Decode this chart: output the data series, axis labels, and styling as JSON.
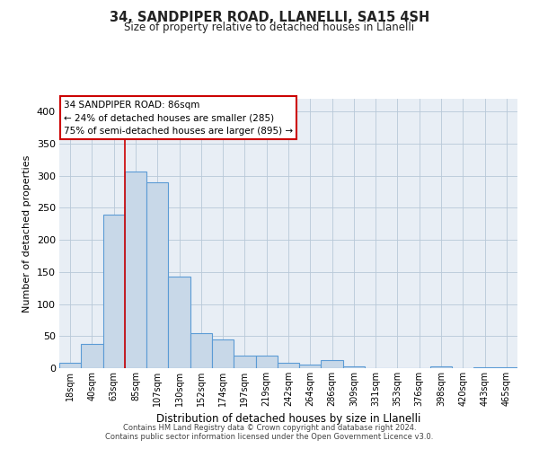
{
  "title": "34, SANDPIPER ROAD, LLANELLI, SA15 4SH",
  "subtitle": "Size of property relative to detached houses in Llanelli",
  "xlabel": "Distribution of detached houses by size in Llanelli",
  "ylabel": "Number of detached properties",
  "bar_labels": [
    "18sqm",
    "40sqm",
    "63sqm",
    "85sqm",
    "107sqm",
    "130sqm",
    "152sqm",
    "174sqm",
    "197sqm",
    "219sqm",
    "242sqm",
    "264sqm",
    "286sqm",
    "309sqm",
    "331sqm",
    "353sqm",
    "376sqm",
    "398sqm",
    "420sqm",
    "443sqm",
    "465sqm"
  ],
  "bar_values": [
    8,
    38,
    240,
    307,
    290,
    143,
    55,
    45,
    20,
    20,
    8,
    5,
    13,
    3,
    0,
    0,
    0,
    3,
    0,
    2,
    2
  ],
  "bar_color": "#c8d8e8",
  "bar_edge_color": "#5b9bd5",
  "vline_x_index": 3,
  "vline_color": "#cc0000",
  "annotation_title": "34 SANDPIPER ROAD: 86sqm",
  "annotation_line1": "← 24% of detached houses are smaller (285)",
  "annotation_line2": "75% of semi-detached houses are larger (895) →",
  "annotation_box_color": "#ffffff",
  "annotation_box_edge": "#cc0000",
  "ylim": [
    0,
    420
  ],
  "yticks": [
    0,
    50,
    100,
    150,
    200,
    250,
    300,
    350,
    400
  ],
  "bg_color": "#e8eef5",
  "footer_line1": "Contains HM Land Registry data © Crown copyright and database right 2024.",
  "footer_line2": "Contains public sector information licensed under the Open Government Licence v3.0."
}
